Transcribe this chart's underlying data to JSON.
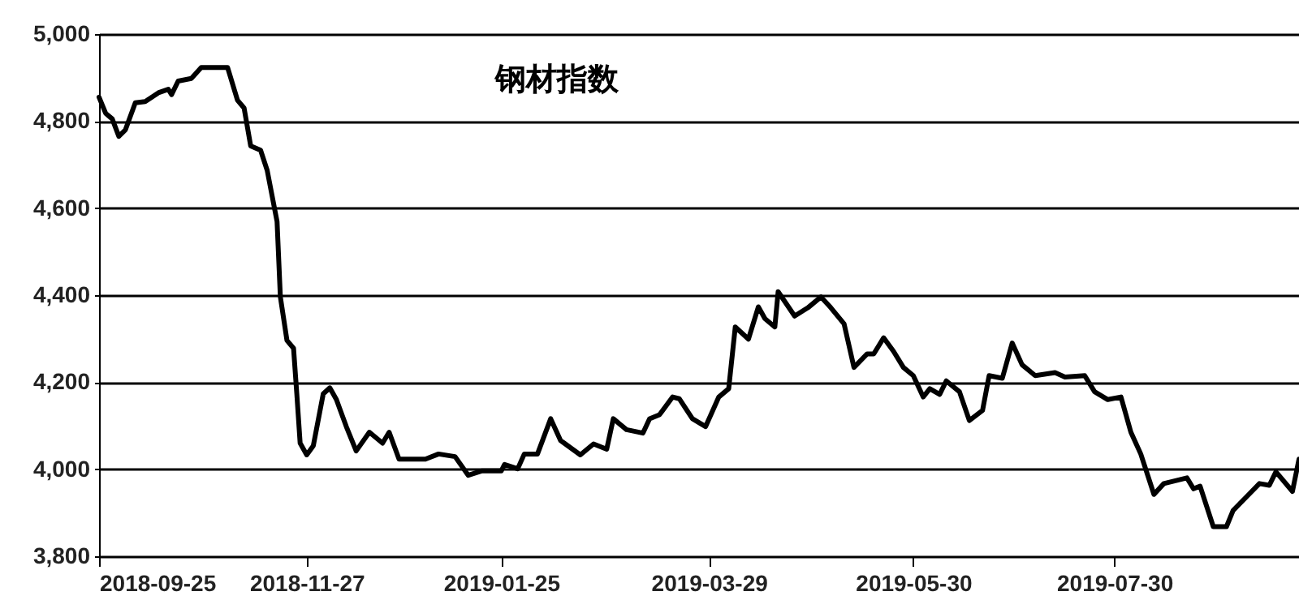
{
  "chart_data": {
    "type": "line",
    "title": "钢材指数",
    "x": [
      "2018-09-25",
      "2018-09-27",
      "2018-09-29",
      "2018-10-01",
      "2018-10-03",
      "2018-10-06",
      "2018-10-09",
      "2018-10-13",
      "2018-10-16",
      "2018-10-17",
      "2018-10-19",
      "2018-10-23",
      "2018-10-26",
      "2018-11-03",
      "2018-11-06",
      "2018-11-08",
      "2018-11-10",
      "2018-11-13",
      "2018-11-15",
      "2018-11-18",
      "2018-11-19",
      "2018-11-21",
      "2018-11-23",
      "2018-11-24",
      "2018-11-25",
      "2018-11-27",
      "2018-11-29",
      "2018-12-02",
      "2018-12-04",
      "2018-12-06",
      "2018-12-09",
      "2018-12-12",
      "2018-12-16",
      "2018-12-20",
      "2018-12-22",
      "2018-12-25",
      "2019-01-02",
      "2019-01-06",
      "2019-01-11",
      "2019-01-15",
      "2019-01-19",
      "2019-01-25",
      "2019-01-26",
      "2019-01-30",
      "2019-02-01",
      "2019-02-05",
      "2019-02-09",
      "2019-02-12",
      "2019-02-18",
      "2019-02-22",
      "2019-02-26",
      "2019-02-28",
      "2019-03-04",
      "2019-03-09",
      "2019-03-11",
      "2019-03-14",
      "2019-03-18",
      "2019-03-20",
      "2019-03-24",
      "2019-03-28",
      "2019-04-01",
      "2019-04-04",
      "2019-04-06",
      "2019-04-10",
      "2019-04-13",
      "2019-04-15",
      "2019-04-18",
      "2019-04-19",
      "2019-04-24",
      "2019-04-28",
      "2019-05-02",
      "2019-05-05",
      "2019-05-09",
      "2019-05-12",
      "2019-05-16",
      "2019-05-18",
      "2019-05-21",
      "2019-05-24",
      "2019-05-27",
      "2019-05-30",
      "2019-06-02",
      "2019-06-04",
      "2019-06-07",
      "2019-06-09",
      "2019-06-13",
      "2019-06-16",
      "2019-06-20",
      "2019-06-22",
      "2019-06-26",
      "2019-06-29",
      "2019-07-02",
      "2019-07-06",
      "2019-07-12",
      "2019-07-15",
      "2019-07-21",
      "2019-07-24",
      "2019-07-28",
      "2019-08-01",
      "2019-08-04",
      "2019-08-07",
      "2019-08-11",
      "2019-08-14",
      "2019-08-21",
      "2019-08-23",
      "2019-08-25",
      "2019-08-29",
      "2019-09-02",
      "2019-09-04",
      "2019-09-08",
      "2019-09-12",
      "2019-09-15",
      "2019-09-17",
      "2019-09-22",
      "2019-09-24"
    ],
    "series": [
      {
        "color": "#000000",
        "values": [
          4855,
          4818,
          4805,
          4765,
          4780,
          4842,
          4845,
          4865,
          4873,
          4861,
          4892,
          4898,
          4923,
          4923,
          4848,
          4830,
          4743,
          4733,
          4687,
          4569,
          4396,
          4296,
          4278,
          4172,
          4060,
          4033,
          4054,
          4173,
          4187,
          4160,
          4098,
          4042,
          4085,
          4060,
          4085,
          4023,
          4023,
          4035,
          4029,
          3986,
          3996,
          3996,
          4011,
          4001,
          4035,
          4035,
          4116,
          4066,
          4033,
          4058,
          4046,
          4116,
          4091,
          4083,
          4116,
          4125,
          4166,
          4162,
          4116,
          4098,
          4166,
          4185,
          4327,
          4299,
          4373,
          4346,
          4327,
          4408,
          4352,
          4371,
          4396,
          4371,
          4334,
          4234,
          4265,
          4265,
          4302,
          4271,
          4234,
          4215,
          4166,
          4185,
          4172,
          4203,
          4178,
          4112,
          4135,
          4215,
          4209,
          4290,
          4240,
          4215,
          4222,
          4212,
          4215,
          4178,
          4160,
          4166,
          4085,
          4035,
          3942,
          3967,
          3980,
          3955,
          3961,
          3868,
          3868,
          3905,
          3936,
          3967,
          3963,
          3994,
          3949,
          4023
        ]
      }
    ],
    "xlim": [
      "2018-09-25",
      "2019-09-24"
    ],
    "xticks": [
      "2018-09-25",
      "2018-11-27",
      "2019-01-25",
      "2019-03-29",
      "2019-05-30",
      "2019-07-30"
    ],
    "ylim": [
      3800,
      5000
    ],
    "yticks": [
      {
        "value": 3800,
        "label": "3,800"
      },
      {
        "value": 4000,
        "label": "4,000"
      },
      {
        "value": 4200,
        "label": "4,200"
      },
      {
        "value": 4400,
        "label": "4,400"
      },
      {
        "value": 4600,
        "label": "4,600"
      },
      {
        "value": 4800,
        "label": "4,800"
      },
      {
        "value": 5000,
        "label": "5,000"
      }
    ],
    "grid": "y",
    "legend": false,
    "marker": "none",
    "line_style": "solid"
  }
}
